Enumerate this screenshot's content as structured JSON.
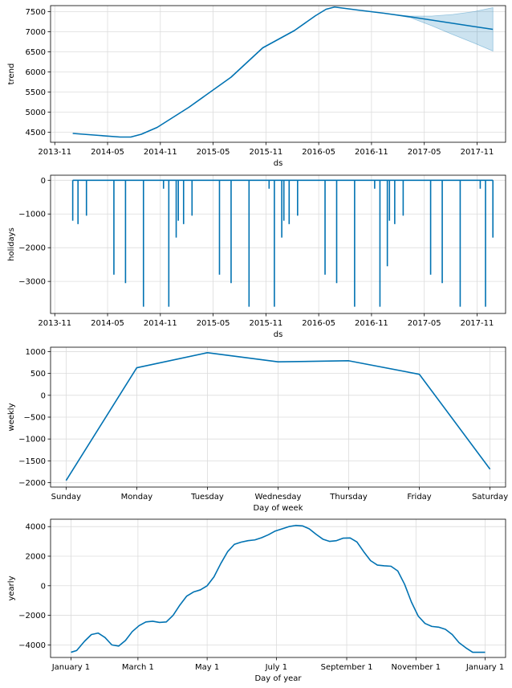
{
  "colors": {
    "line": "#0072B2",
    "band": "#0072B2",
    "grid": "#dcdcdc"
  },
  "chart_data": [
    {
      "type": "line",
      "id": "trend",
      "xlabel": "ds",
      "ylabel": "trend",
      "xlim": [
        2013.79,
        2018.1
      ],
      "ylim": [
        4250,
        7650
      ],
      "xticks": [
        {
          "v": 2013.83,
          "label": "2013-11"
        },
        {
          "v": 2014.33,
          "label": "2014-05"
        },
        {
          "v": 2014.83,
          "label": "2014-11"
        },
        {
          "v": 2015.33,
          "label": "2015-05"
        },
        {
          "v": 2015.83,
          "label": "2015-11"
        },
        {
          "v": 2016.33,
          "label": "2016-05"
        },
        {
          "v": 2016.83,
          "label": "2016-11"
        },
        {
          "v": 2017.33,
          "label": "2017-05"
        },
        {
          "v": 2017.83,
          "label": "2017-11"
        }
      ],
      "yticks": [
        {
          "v": 4500,
          "label": "4500"
        },
        {
          "v": 5000,
          "label": "5000"
        },
        {
          "v": 5500,
          "label": "5500"
        },
        {
          "v": 6000,
          "label": "6000"
        },
        {
          "v": 6500,
          "label": "6500"
        },
        {
          "v": 7000,
          "label": "7000"
        },
        {
          "v": 7500,
          "label": "7500"
        }
      ],
      "x": [
        2014.0,
        2014.25,
        2014.45,
        2014.55,
        2014.65,
        2014.8,
        2015.1,
        2015.5,
        2015.8,
        2016.1,
        2016.3,
        2016.4,
        2016.48,
        2016.7,
        2016.95,
        2017.2,
        2017.5,
        2017.8,
        2017.98
      ],
      "y": [
        4470,
        4420,
        4380,
        4380,
        4450,
        4620,
        5120,
        5870,
        6600,
        7030,
        7400,
        7560,
        7615,
        7540,
        7460,
        7370,
        7250,
        7130,
        7060
      ],
      "band": {
        "x": [
          2017.05,
          2017.2,
          2017.4,
          2017.6,
          2017.8,
          2017.98
        ],
        "upper": [
          7420,
          7390,
          7390,
          7430,
          7500,
          7600
        ],
        "lower": [
          7420,
          7350,
          7150,
          6930,
          6720,
          6520
        ]
      }
    },
    {
      "type": "line",
      "id": "holidays",
      "xlabel": "ds",
      "ylabel": "holidays",
      "xlim": [
        2013.79,
        2018.1
      ],
      "ylim": [
        -3950,
        150
      ],
      "xticks": [
        {
          "v": 2013.83,
          "label": "2013-11"
        },
        {
          "v": 2014.33,
          "label": "2014-05"
        },
        {
          "v": 2014.83,
          "label": "2014-11"
        },
        {
          "v": 2015.33,
          "label": "2015-05"
        },
        {
          "v": 2015.83,
          "label": "2015-11"
        },
        {
          "v": 2016.33,
          "label": "2016-05"
        },
        {
          "v": 2016.83,
          "label": "2016-11"
        },
        {
          "v": 2017.33,
          "label": "2017-05"
        },
        {
          "v": 2017.83,
          "label": "2017-11"
        }
      ],
      "yticks": [
        {
          "v": 0,
          "label": "0"
        },
        {
          "v": -1000,
          "label": "−1000"
        },
        {
          "v": -2000,
          "label": "−2000"
        },
        {
          "v": -3000,
          "label": "−3000"
        }
      ],
      "x_start": 2014.0,
      "x_end": 2017.98,
      "spikes": [
        {
          "x": 2014.0,
          "v": -1200
        },
        {
          "x": 2014.05,
          "v": -1300
        },
        {
          "x": 2014.13,
          "v": -1050
        },
        {
          "x": 2014.39,
          "v": -2800
        },
        {
          "x": 2014.5,
          "v": -3050
        },
        {
          "x": 2014.67,
          "v": -3750
        },
        {
          "x": 2014.86,
          "v": -250
        },
        {
          "x": 2014.91,
          "v": -3750
        },
        {
          "x": 2014.98,
          "v": -1700
        },
        {
          "x": 2015.0,
          "v": -1200
        },
        {
          "x": 2015.05,
          "v": -1300
        },
        {
          "x": 2015.13,
          "v": -1050
        },
        {
          "x": 2015.39,
          "v": -2800
        },
        {
          "x": 2015.5,
          "v": -3050
        },
        {
          "x": 2015.67,
          "v": -3750
        },
        {
          "x": 2015.86,
          "v": -250
        },
        {
          "x": 2015.91,
          "v": -3750
        },
        {
          "x": 2015.98,
          "v": -1700
        },
        {
          "x": 2016.0,
          "v": -1200
        },
        {
          "x": 2016.05,
          "v": -1300
        },
        {
          "x": 2016.13,
          "v": -1050
        },
        {
          "x": 2016.39,
          "v": -2800
        },
        {
          "x": 2016.5,
          "v": -3050
        },
        {
          "x": 2016.67,
          "v": -3750
        },
        {
          "x": 2016.86,
          "v": -250
        },
        {
          "x": 2016.91,
          "v": -3750
        },
        {
          "x": 2016.98,
          "v": -2550
        },
        {
          "x": 2017.0,
          "v": -1200
        },
        {
          "x": 2017.05,
          "v": -1300
        },
        {
          "x": 2017.13,
          "v": -1050
        },
        {
          "x": 2017.39,
          "v": -2800
        },
        {
          "x": 2017.5,
          "v": -3050
        },
        {
          "x": 2017.67,
          "v": -3750
        },
        {
          "x": 2017.86,
          "v": -250
        },
        {
          "x": 2017.91,
          "v": -3750
        },
        {
          "x": 2017.98,
          "v": -1700
        }
      ]
    },
    {
      "type": "line",
      "id": "weekly",
      "xlabel": "Day of week",
      "ylabel": "weekly",
      "xlim": [
        -0.22,
        6.22
      ],
      "ylim": [
        -2100,
        1100
      ],
      "xticks": [
        {
          "v": 0,
          "label": "Sunday"
        },
        {
          "v": 1,
          "label": "Monday"
        },
        {
          "v": 2,
          "label": "Tuesday"
        },
        {
          "v": 3,
          "label": "Wednesday"
        },
        {
          "v": 4,
          "label": "Thursday"
        },
        {
          "v": 5,
          "label": "Friday"
        },
        {
          "v": 6,
          "label": "Saturday"
        }
      ],
      "yticks": [
        {
          "v": 1000,
          "label": "1000"
        },
        {
          "v": 500,
          "label": "500"
        },
        {
          "v": 0,
          "label": "0"
        },
        {
          "v": -500,
          "label": "−500"
        },
        {
          "v": -1000,
          "label": "−1000"
        },
        {
          "v": -1500,
          "label": "−1500"
        },
        {
          "v": -2000,
          "label": "−2000"
        }
      ],
      "x": [
        0,
        1,
        2,
        3,
        4,
        5,
        6
      ],
      "y": [
        -1950,
        630,
        975,
        765,
        790,
        480,
        -1690
      ]
    },
    {
      "type": "line",
      "id": "yearly",
      "xlabel": "Day of year",
      "ylabel": "yearly",
      "xlim": [
        -18,
        383
      ],
      "ylim": [
        -4850,
        4500
      ],
      "xticks": [
        {
          "v": 0,
          "label": "January 1"
        },
        {
          "v": 59,
          "label": "March 1"
        },
        {
          "v": 120,
          "label": "May 1"
        },
        {
          "v": 181,
          "label": "July 1"
        },
        {
          "v": 243,
          "label": "September 1"
        },
        {
          "v": 304,
          "label": "November 1"
        },
        {
          "v": 365,
          "label": "January 1"
        }
      ],
      "yticks": [
        {
          "v": 4000,
          "label": "4000"
        },
        {
          "v": 2000,
          "label": "2000"
        },
        {
          "v": 0,
          "label": "0"
        },
        {
          "v": -2000,
          "label": "−2000"
        },
        {
          "v": -4000,
          "label": "−4000"
        }
      ],
      "x": [
        0,
        5,
        12,
        18,
        24,
        30,
        36,
        42,
        48,
        54,
        60,
        66,
        72,
        78,
        84,
        90,
        96,
        102,
        108,
        114,
        120,
        126,
        132,
        138,
        144,
        150,
        156,
        162,
        168,
        174,
        180,
        186,
        192,
        198,
        204,
        210,
        216,
        222,
        228,
        234,
        240,
        246,
        252,
        258,
        264,
        270,
        276,
        282,
        288,
        294,
        300,
        306,
        312,
        318,
        324,
        330,
        336,
        342,
        348,
        354,
        360,
        365
      ],
      "y": [
        -4500,
        -4380,
        -3750,
        -3300,
        -3200,
        -3500,
        -4000,
        -4080,
        -3700,
        -3100,
        -2700,
        -2450,
        -2400,
        -2480,
        -2450,
        -2000,
        -1300,
        -700,
        -420,
        -280,
        0,
        600,
        1500,
        2300,
        2800,
        2950,
        3050,
        3100,
        3250,
        3450,
        3700,
        3850,
        4000,
        4080,
        4050,
        3850,
        3480,
        3150,
        3000,
        3050,
        3220,
        3230,
        2960,
        2300,
        1700,
        1400,
        1350,
        1320,
        1000,
        100,
        -1100,
        -2050,
        -2550,
        -2750,
        -2800,
        -2950,
        -3300,
        -3850,
        -4200,
        -4500,
        -4500,
        -4500
      ]
    }
  ]
}
